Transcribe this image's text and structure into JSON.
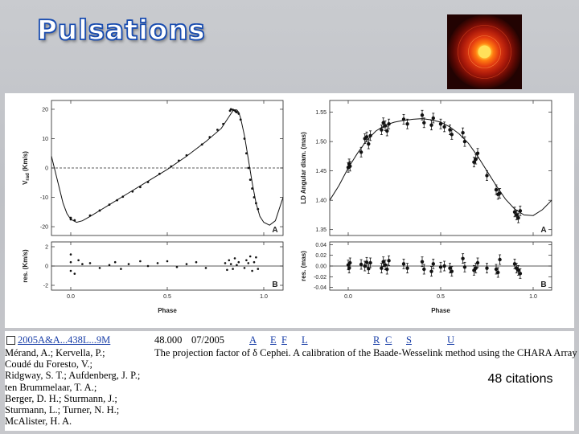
{
  "slide_title": "Pulsations",
  "ads_record": {
    "bibcode": "2005A&A...438L...9M",
    "score": "48.000",
    "date": "07/2005",
    "links": [
      "A",
      "E",
      "F",
      "L",
      "R",
      "C",
      "S",
      "U"
    ],
    "authors": [
      "Mérand, A.; Kervella, P.;",
      "Coudé du Foresto, V.;",
      "Ridgway, S. T.; Aufdenberg, J. P.;",
      "ten Brummelaar, T. A.;",
      "Berger, D. H.; Sturmann, J.;",
      "Sturmann, L.; Turner, N. H.;",
      "McAlister, H. A."
    ],
    "title": "The projection factor of δ Cephei. A calibration of the Baade-Wesselink method using the CHARA Array"
  },
  "citations": "48 citations",
  "colors": {
    "title_outline": "#1a4db0",
    "link": "#1a3fa8"
  },
  "chart_data": [
    {
      "type": "scatter",
      "panel_label": "A",
      "xlabel": "",
      "ylabel": "V_rad (Km/s)",
      "ylabel_main": "V",
      "ylabel_sub": "rad",
      "ylabel_unit": "(Km/s)",
      "xlim": [
        -0.1,
        1.1
      ],
      "ylim": [
        -23,
        23
      ],
      "yticks": [
        -20,
        -10,
        0,
        10,
        20
      ],
      "xticks": [
        0.0,
        0.5,
        1.0
      ],
      "reference_line_y": 0,
      "model_curve": [
        [
          -0.1,
          4
        ],
        [
          -0.07,
          -4
        ],
        [
          -0.04,
          -12
        ],
        [
          -0.02,
          -15.5
        ],
        [
          0.0,
          -17.5
        ],
        [
          0.03,
          -18.5
        ],
        [
          0.06,
          -18
        ],
        [
          0.1,
          -16.5
        ],
        [
          0.2,
          -12.5
        ],
        [
          0.3,
          -8.5
        ],
        [
          0.4,
          -4.5
        ],
        [
          0.5,
          -0.5
        ],
        [
          0.6,
          4
        ],
        [
          0.7,
          9
        ],
        [
          0.78,
          13.5
        ],
        [
          0.82,
          17.5
        ],
        [
          0.84,
          19.5
        ],
        [
          0.86,
          19.8
        ],
        [
          0.87,
          19
        ],
        [
          0.88,
          17
        ],
        [
          0.9,
          11
        ],
        [
          0.92,
          3
        ],
        [
          0.94,
          -5
        ],
        [
          0.96,
          -12
        ],
        [
          0.98,
          -16.5
        ],
        [
          1.0,
          -18.5
        ],
        [
          1.03,
          -19.5
        ],
        [
          1.06,
          -18
        ],
        [
          1.1,
          -10
        ]
      ],
      "points": [
        [
          0.0,
          -17
        ],
        [
          0.0,
          -17.5
        ],
        [
          0.02,
          -17.8
        ],
        [
          0.1,
          -16.2
        ],
        [
          0.15,
          -14.5
        ],
        [
          0.2,
          -12.5
        ],
        [
          0.24,
          -11
        ],
        [
          0.27,
          -9.8
        ],
        [
          0.32,
          -8
        ],
        [
          0.36,
          -6.5
        ],
        [
          0.4,
          -4.8
        ],
        [
          0.46,
          -2
        ],
        [
          0.52,
          0.5
        ],
        [
          0.56,
          2.5
        ],
        [
          0.6,
          4.3
        ],
        [
          0.68,
          8
        ],
        [
          0.72,
          10.5
        ],
        [
          0.76,
          13
        ],
        [
          0.79,
          15
        ],
        [
          0.825,
          19.5
        ],
        [
          0.83,
          20
        ],
        [
          0.84,
          19.8
        ],
        [
          0.85,
          19.6
        ],
        [
          0.855,
          19.2
        ],
        [
          0.86,
          19
        ],
        [
          0.87,
          18.5
        ],
        [
          0.88,
          16.5
        ],
        [
          0.9,
          10
        ],
        [
          0.91,
          5
        ],
        [
          0.92,
          0
        ],
        [
          0.93,
          -4
        ],
        [
          0.94,
          -7
        ],
        [
          0.95,
          -10
        ],
        [
          0.96,
          -12
        ],
        [
          0.97,
          -14
        ]
      ]
    },
    {
      "type": "scatter",
      "panel_label": "B",
      "xlabel": "Phase",
      "ylabel": "res. (Km/s)",
      "xlim": [
        -0.1,
        1.1
      ],
      "ylim": [
        -2.5,
        2.5
      ],
      "yticks": [
        -2,
        0,
        2
      ],
      "xticks": [
        0.0,
        0.5,
        1.0
      ],
      "reference_line_y": 0,
      "points": [
        [
          0.0,
          1.2
        ],
        [
          0.0,
          0.4
        ],
        [
          0.0,
          -0.5
        ],
        [
          0.02,
          -0.8
        ],
        [
          0.04,
          0.6
        ],
        [
          0.06,
          0.2
        ],
        [
          0.1,
          0.3
        ],
        [
          0.15,
          -0.2
        ],
        [
          0.2,
          0.1
        ],
        [
          0.23,
          0.4
        ],
        [
          0.26,
          -0.3
        ],
        [
          0.3,
          0.2
        ],
        [
          0.36,
          0.5
        ],
        [
          0.4,
          0.0
        ],
        [
          0.45,
          0.3
        ],
        [
          0.5,
          0.5
        ],
        [
          0.55,
          -0.1
        ],
        [
          0.6,
          0.2
        ],
        [
          0.65,
          0.4
        ],
        [
          0.7,
          -0.2
        ],
        [
          0.8,
          0.3
        ],
        [
          0.81,
          -0.4
        ],
        [
          0.82,
          0.6
        ],
        [
          0.83,
          0.2
        ],
        [
          0.84,
          -0.3
        ],
        [
          0.85,
          0.8
        ],
        [
          0.86,
          0.1
        ],
        [
          0.87,
          0.4
        ],
        [
          0.9,
          -0.2
        ],
        [
          0.91,
          0.6
        ],
        [
          0.92,
          0.3
        ],
        [
          0.93,
          1.0
        ],
        [
          0.94,
          -0.5
        ],
        [
          0.95,
          0.4
        ],
        [
          0.96,
          0.9
        ],
        [
          0.97,
          -0.3
        ]
      ]
    },
    {
      "type": "scatter",
      "panel_label": "A",
      "xlabel": "",
      "ylabel": "LD Angular diam. (mas)",
      "xlim": [
        -0.1,
        1.1
      ],
      "ylim": [
        1.34,
        1.57
      ],
      "yticks": [
        1.35,
        1.4,
        1.45,
        1.5,
        1.55
      ],
      "xticks": [
        0.0,
        0.5,
        1.0
      ],
      "model_curve": [
        [
          -0.1,
          1.4
        ],
        [
          -0.05,
          1.425
        ],
        [
          0.0,
          1.455
        ],
        [
          0.05,
          1.48
        ],
        [
          0.1,
          1.502
        ],
        [
          0.15,
          1.518
        ],
        [
          0.2,
          1.528
        ],
        [
          0.25,
          1.533
        ],
        [
          0.3,
          1.536
        ],
        [
          0.35,
          1.538
        ],
        [
          0.4,
          1.539
        ],
        [
          0.45,
          1.537
        ],
        [
          0.5,
          1.533
        ],
        [
          0.55,
          1.525
        ],
        [
          0.6,
          1.513
        ],
        [
          0.65,
          1.497
        ],
        [
          0.7,
          1.475
        ],
        [
          0.75,
          1.45
        ],
        [
          0.8,
          1.425
        ],
        [
          0.85,
          1.402
        ],
        [
          0.9,
          1.385
        ],
        [
          0.95,
          1.375
        ],
        [
          1.0,
          1.374
        ],
        [
          1.05,
          1.384
        ],
        [
          1.1,
          1.4
        ]
      ],
      "points": [
        [
          0.0,
          1.456
        ],
        [
          0.005,
          1.462
        ],
        [
          0.01,
          1.458
        ],
        [
          0.07,
          1.482
        ],
        [
          0.09,
          1.505
        ],
        [
          0.1,
          1.508
        ],
        [
          0.11,
          1.496
        ],
        [
          0.12,
          1.51
        ],
        [
          0.18,
          1.52
        ],
        [
          0.19,
          1.532
        ],
        [
          0.2,
          1.527
        ],
        [
          0.21,
          1.518
        ],
        [
          0.22,
          1.53
        ],
        [
          0.3,
          1.538
        ],
        [
          0.32,
          1.53
        ],
        [
          0.4,
          1.545
        ],
        [
          0.41,
          1.532
        ],
        [
          0.45,
          1.528
        ],
        [
          0.46,
          1.54
        ],
        [
          0.5,
          1.53
        ],
        [
          0.52,
          1.525
        ],
        [
          0.55,
          1.52
        ],
        [
          0.56,
          1.512
        ],
        [
          0.62,
          1.515
        ],
        [
          0.63,
          1.5
        ],
        [
          0.68,
          1.465
        ],
        [
          0.69,
          1.47
        ],
        [
          0.7,
          1.48
        ],
        [
          0.75,
          1.442
        ],
        [
          0.8,
          1.418
        ],
        [
          0.81,
          1.41
        ],
        [
          0.82,
          1.412
        ],
        [
          0.9,
          1.38
        ],
        [
          0.91,
          1.375
        ],
        [
          0.92,
          1.37
        ],
        [
          0.93,
          1.382
        ]
      ]
    },
    {
      "type": "scatter",
      "panel_label": "B",
      "xlabel": "Phase",
      "ylabel": "res. (mas)",
      "xlim": [
        -0.1,
        1.1
      ],
      "ylim": [
        -0.045,
        0.045
      ],
      "yticks": [
        -0.04,
        -0.02,
        0.0,
        0.02,
        0.04
      ],
      "xticks": [
        0.0,
        0.5,
        1.0
      ],
      "reference_line_y": 0,
      "points": [
        [
          0.0,
          0.002
        ],
        [
          0.005,
          -0.004
        ],
        [
          0.01,
          0.006
        ],
        [
          0.07,
          0.003
        ],
        [
          0.09,
          0.0
        ],
        [
          0.1,
          0.007
        ],
        [
          0.11,
          -0.005
        ],
        [
          0.12,
          0.006
        ],
        [
          0.18,
          -0.004
        ],
        [
          0.19,
          0.008
        ],
        [
          0.2,
          0.002
        ],
        [
          0.21,
          -0.006
        ],
        [
          0.22,
          0.01
        ],
        [
          0.3,
          0.004
        ],
        [
          0.32,
          -0.004
        ],
        [
          0.4,
          0.008
        ],
        [
          0.41,
          -0.006
        ],
        [
          0.45,
          -0.01
        ],
        [
          0.46,
          0.004
        ],
        [
          0.5,
          -0.002
        ],
        [
          0.52,
          0.0
        ],
        [
          0.55,
          -0.004
        ],
        [
          0.56,
          -0.01
        ],
        [
          0.62,
          0.014
        ],
        [
          0.63,
          -0.002
        ],
        [
          0.68,
          -0.008
        ],
        [
          0.69,
          -0.004
        ],
        [
          0.7,
          0.006
        ],
        [
          0.75,
          -0.004
        ],
        [
          0.8,
          -0.006
        ],
        [
          0.81,
          -0.012
        ],
        [
          0.82,
          0.012
        ],
        [
          0.9,
          0.004
        ],
        [
          0.91,
          -0.004
        ],
        [
          0.92,
          -0.008
        ],
        [
          0.93,
          -0.014
        ]
      ]
    }
  ]
}
